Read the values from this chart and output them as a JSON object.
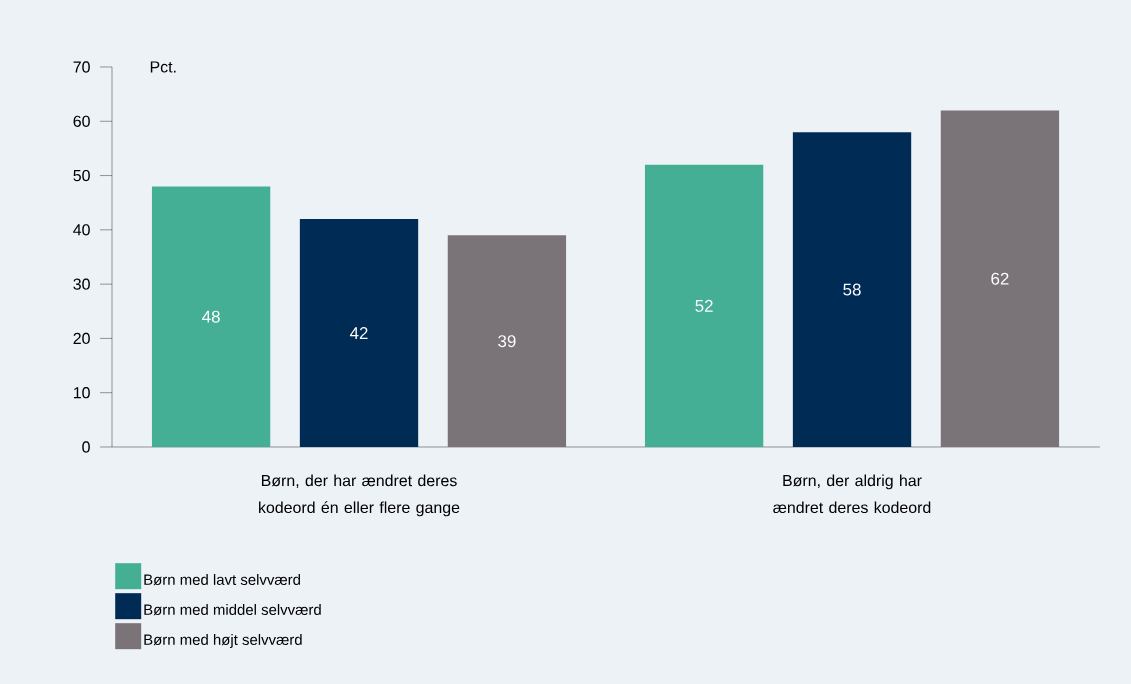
{
  "chart_data": {
    "type": "bar",
    "ylabel": "Pct.",
    "categories": [
      "Børn, der har ændret deres kodeord én eller flere gange",
      "Børn, der aldrig har ændret deres kodeord"
    ],
    "series": [
      {
        "name": "Børn med lavt selvværd",
        "color": "#45af96",
        "values": [
          48,
          52
        ]
      },
      {
        "name": "Børn med middel selvværd",
        "color": "#002b55",
        "values": [
          42,
          58
        ]
      },
      {
        "name": "Børn med højt selvværd",
        "color": "#7a7478",
        "values": [
          39,
          62
        ]
      }
    ],
    "ylim": [
      0,
      70
    ],
    "yticks": [
      0,
      10,
      20,
      30,
      40,
      50,
      60,
      70
    ],
    "data_labels": true,
    "legend": "bottom left",
    "grid": false
  }
}
